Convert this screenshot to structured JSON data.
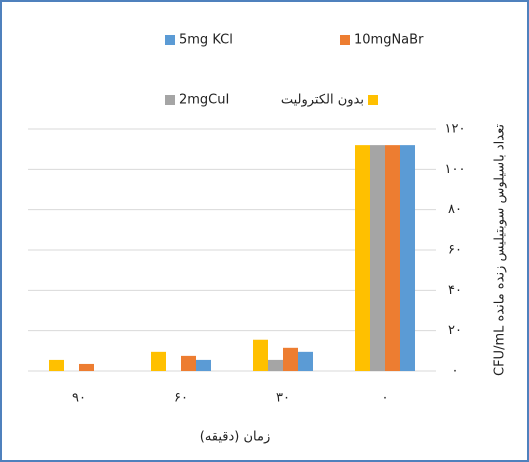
{
  "chart_data": {
    "type": "bar",
    "categories": [
      "۹۰",
      "۶۰",
      "۳۰",
      "۰"
    ],
    "series": [
      {
        "name": "بدون الکترولیت",
        "color": "#ffc000",
        "values": [
          5.5,
          9.5,
          15.5,
          112
        ]
      },
      {
        "name": "2mgCuI",
        "color": "#a5a5a5",
        "values": [
          0,
          0,
          5.5,
          112
        ]
      },
      {
        "name": "10mgNaBr",
        "color": "#ed7d31",
        "values": [
          3.5,
          7.5,
          11.5,
          112
        ]
      },
      {
        "name": "5mg KCl",
        "color": "#5b9bd5",
        "values": [
          0,
          5.5,
          9.5,
          112
        ]
      }
    ],
    "ylim": [
      0,
      120
    ],
    "yticks": [
      {
        "value": 0,
        "label": "۰"
      },
      {
        "value": 20,
        "label": "۲۰"
      },
      {
        "value": 40,
        "label": "۴۰"
      },
      {
        "value": 60,
        "label": "۶۰"
      },
      {
        "value": 80,
        "label": "۸۰"
      },
      {
        "value": 100,
        "label": "۱۰۰"
      },
      {
        "value": 120,
        "label": "۱۲۰"
      }
    ],
    "ylabel": "CFU/mL تعداد باسیلوس سوبتیلیس زنده مانده",
    "xlabel": "زمان (دقیقه)",
    "grid": true
  }
}
